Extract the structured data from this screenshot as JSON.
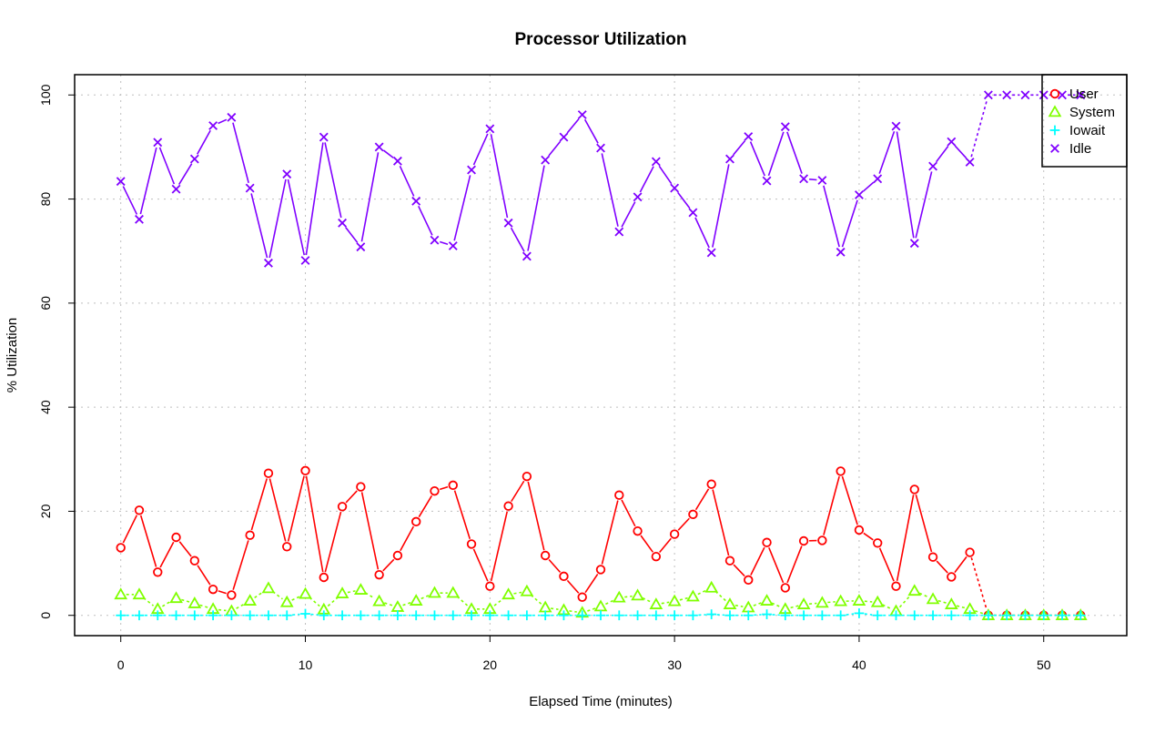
{
  "chart_data": {
    "type": "line",
    "title": "Processor Utilization",
    "xlabel": "Elapsed Time (minutes)",
    "ylabel": "% Utilization",
    "xlim": [
      -2.5,
      54.5
    ],
    "ylim": [
      -3.9,
      103.9
    ],
    "xticks": [
      0,
      10,
      20,
      30,
      40,
      50
    ],
    "yticks": [
      0,
      20,
      40,
      60,
      80,
      100
    ],
    "grid": true,
    "legend_position": "top-right",
    "x": [
      0,
      1,
      2,
      3,
      4,
      5,
      6,
      7,
      8,
      9,
      10,
      11,
      12,
      13,
      14,
      15,
      16,
      17,
      18,
      19,
      20,
      21,
      22,
      23,
      24,
      25,
      26,
      27,
      28,
      29,
      30,
      31,
      32,
      33,
      34,
      35,
      36,
      37,
      38,
      39,
      40,
      41,
      42,
      43,
      44,
      45,
      46,
      47,
      48,
      49,
      50,
      51,
      52
    ],
    "series": [
      {
        "name": "User",
        "color": "#ff0000",
        "marker": "circle",
        "values": [
          13.0,
          20.2,
          8.3,
          15.0,
          10.5,
          5.0,
          3.9,
          15.4,
          27.3,
          13.2,
          27.8,
          7.3,
          20.9,
          24.7,
          7.8,
          11.5,
          18.0,
          23.9,
          25.0,
          13.7,
          5.6,
          21.0,
          26.7,
          11.5,
          7.5,
          3.5,
          8.8,
          23.1,
          16.2,
          11.3,
          15.6,
          19.4,
          25.2,
          10.5,
          6.8,
          14.0,
          5.3,
          14.3,
          14.4,
          27.7,
          16.4,
          13.9,
          5.6,
          24.2,
          11.2,
          7.4,
          12.1,
          0.0,
          0.0,
          0.0,
          0.0,
          0.0,
          0.0
        ]
      },
      {
        "name": "System",
        "color": "#80ff00",
        "marker": "triangle",
        "values": [
          4.0,
          4.0,
          1.2,
          3.3,
          2.3,
          1.2,
          0.8,
          2.8,
          5.2,
          2.5,
          4.1,
          1.1,
          4.2,
          4.9,
          2.7,
          1.6,
          2.8,
          4.3,
          4.3,
          1.2,
          1.2,
          4.0,
          4.6,
          1.5,
          1.0,
          0.5,
          1.7,
          3.4,
          3.8,
          2.1,
          2.7,
          3.6,
          5.3,
          2.1,
          1.5,
          2.8,
          1.2,
          2.1,
          2.4,
          2.7,
          2.8,
          2.5,
          0.8,
          4.7,
          3.1,
          2.1,
          1.2,
          0.0,
          0.0,
          0.0,
          0.0,
          0.0,
          0.0
        ]
      },
      {
        "name": "Iowait",
        "color": "#00ffff",
        "marker": "plus",
        "values": [
          0.0,
          0.0,
          0.0,
          0.0,
          0.0,
          0.0,
          0.0,
          0.0,
          0.0,
          0.0,
          0.3,
          0.0,
          0.0,
          0.0,
          0.0,
          0.0,
          0.0,
          0.0,
          0.0,
          0.0,
          0.0,
          0.0,
          0.0,
          0.0,
          0.0,
          0.0,
          0.0,
          0.0,
          0.0,
          0.0,
          0.0,
          0.0,
          0.2,
          0.0,
          0.0,
          0.2,
          0.0,
          0.0,
          0.0,
          0.0,
          0.4,
          0.0,
          0.0,
          0.0,
          0.0,
          0.0,
          0.0,
          0.0,
          0.0,
          0.0,
          0.0,
          0.0,
          0.0
        ]
      },
      {
        "name": "Idle",
        "color": "#8000ff",
        "marker": "x",
        "values": [
          83.4,
          76.1,
          90.9,
          81.9,
          87.7,
          94.1,
          95.7,
          82.1,
          67.7,
          84.8,
          68.2,
          91.9,
          75.4,
          70.8,
          90.0,
          87.3,
          79.6,
          72.1,
          71.0,
          85.6,
          93.5,
          75.4,
          69.0,
          87.5,
          91.9,
          96.2,
          89.8,
          73.7,
          80.4,
          87.2,
          82.1,
          77.4,
          69.7,
          87.7,
          92.0,
          83.5,
          93.9,
          83.9,
          83.6,
          69.8,
          80.8,
          83.9,
          94.0,
          71.5,
          86.3,
          91.0,
          87.1,
          100.0,
          100.0,
          100.0,
          100.0,
          100.0,
          100.0
        ]
      }
    ]
  }
}
